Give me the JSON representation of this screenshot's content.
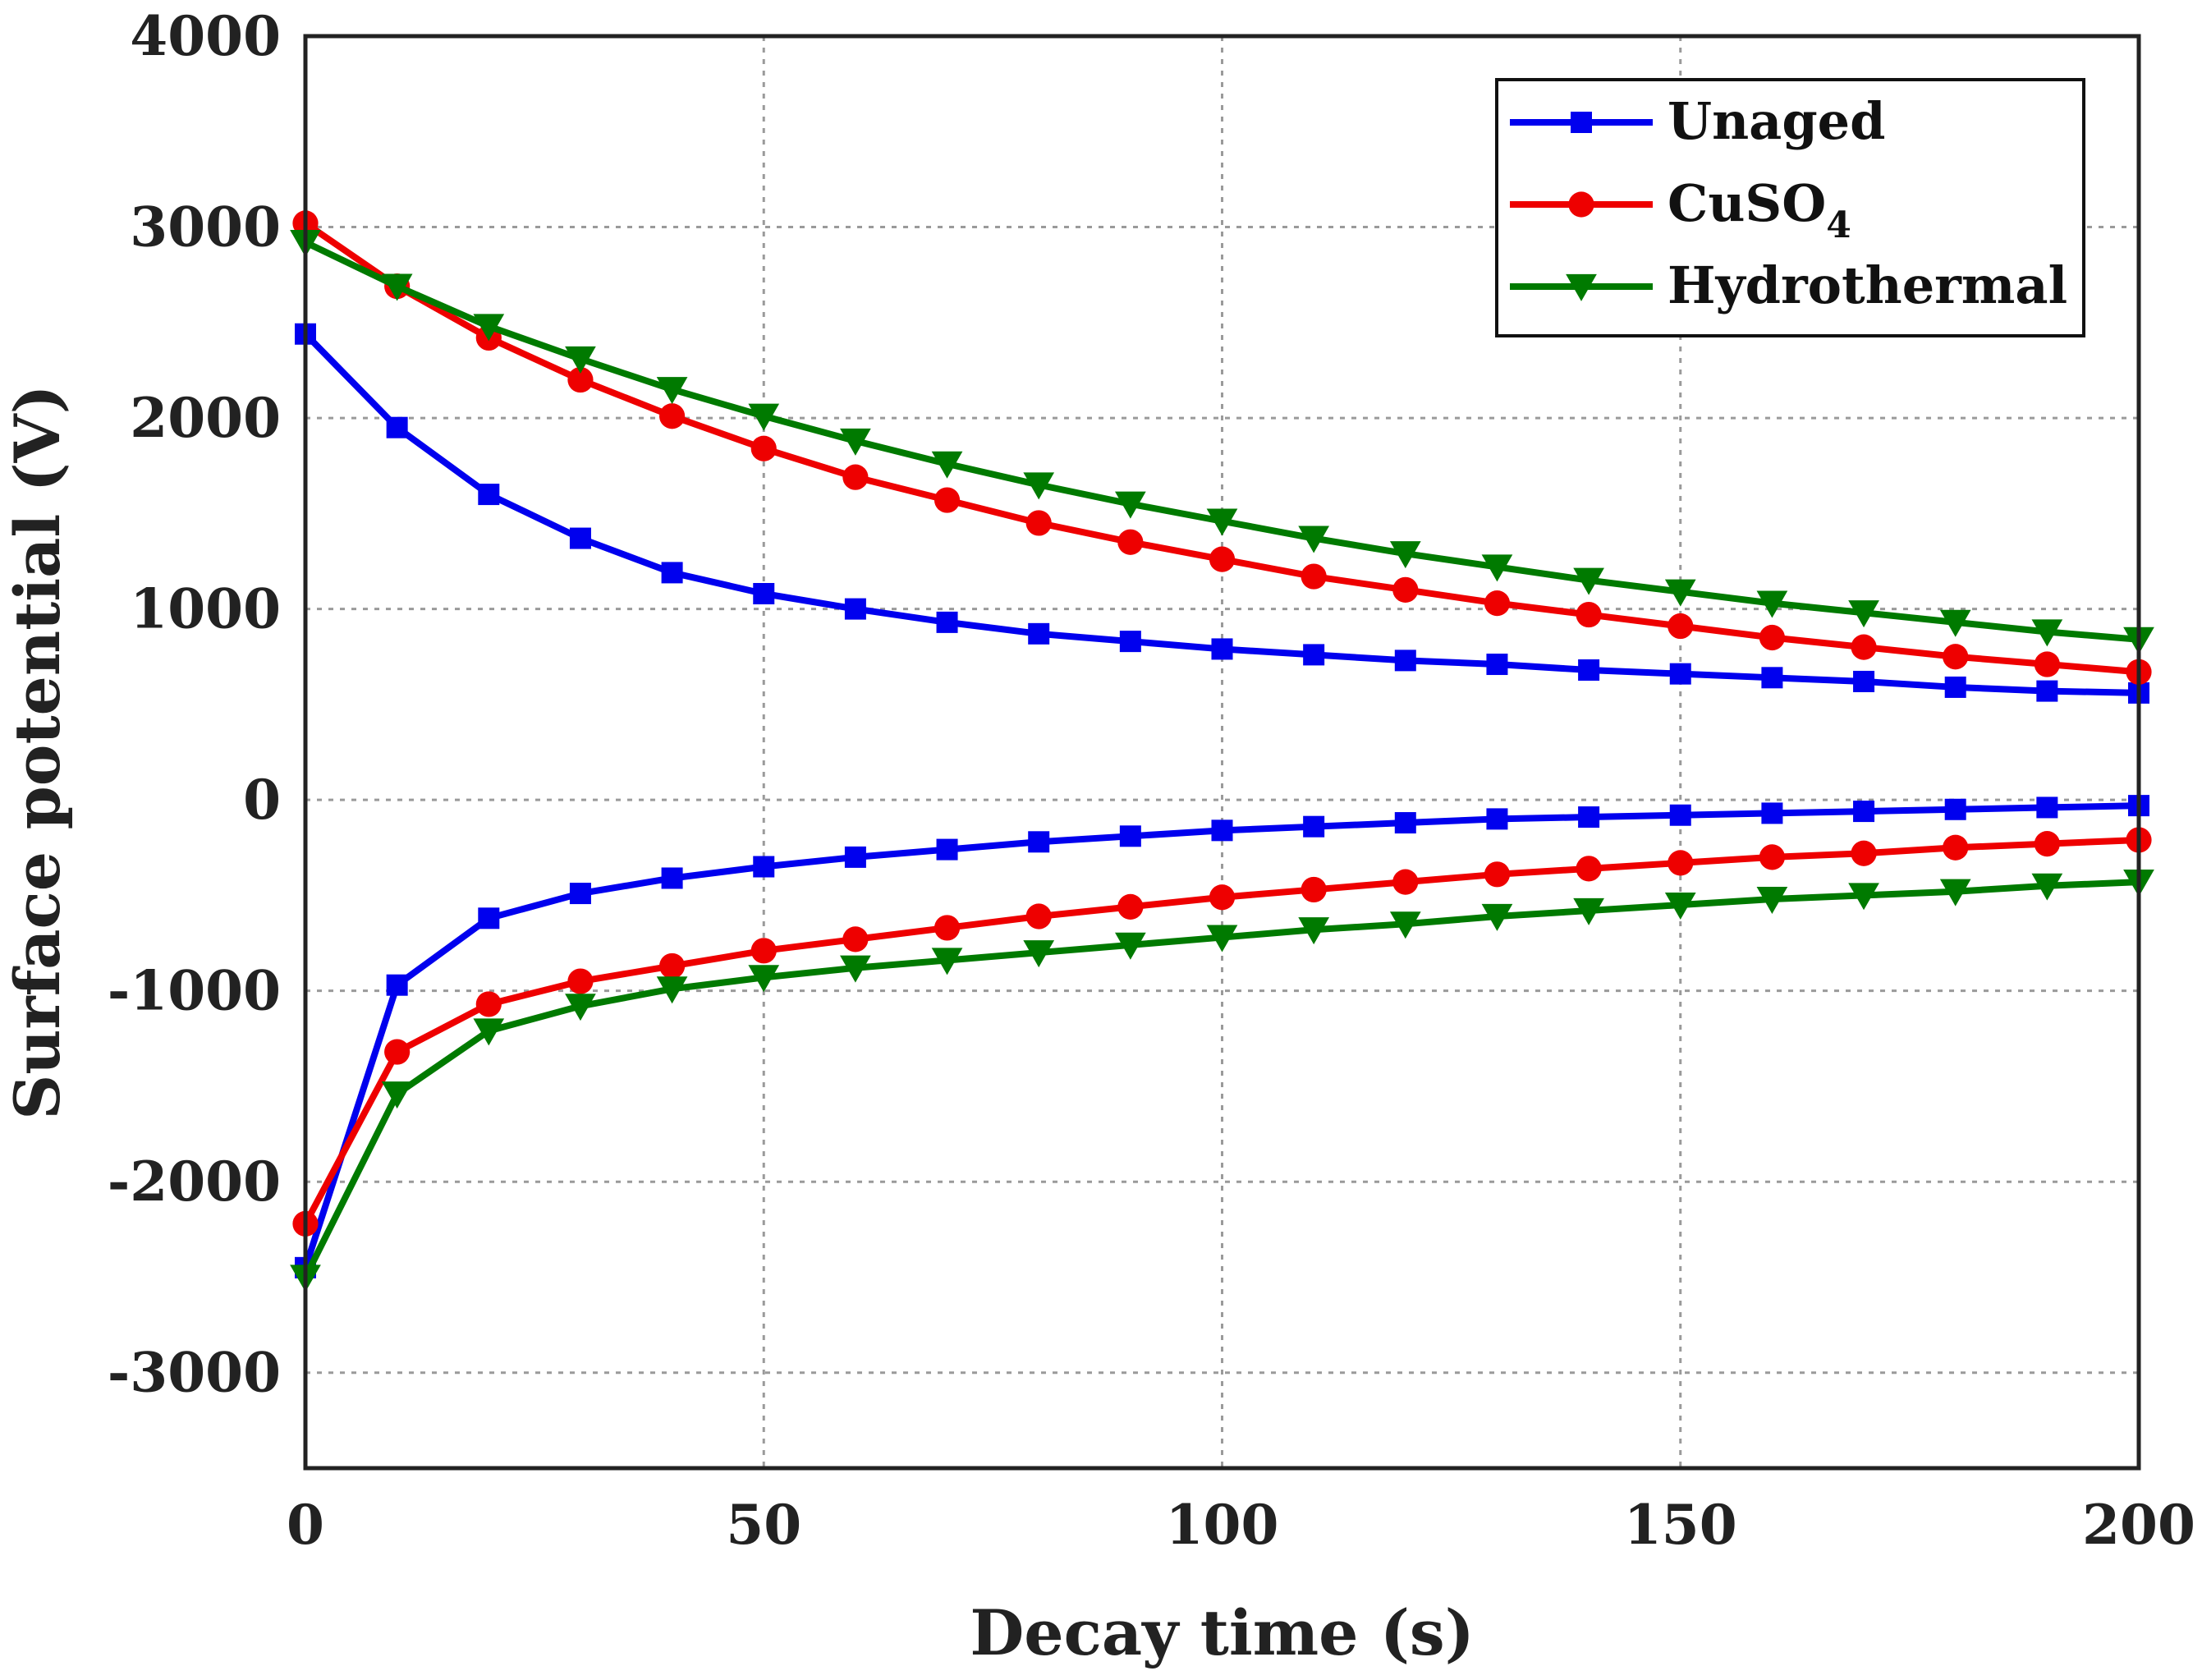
{
  "chart_data": {
    "type": "line",
    "title": "",
    "xlabel": "Decay time (s)",
    "ylabel": "Surface potential (V)",
    "xlim": [
      0,
      200
    ],
    "ylim": [
      -3500,
      4000
    ],
    "xticks": [
      0,
      50,
      100,
      150,
      200
    ],
    "yticks": [
      4000,
      3000,
      2000,
      1000,
      0,
      -1000,
      -2000,
      -3000
    ],
    "grid": true,
    "legend_position": "top-right",
    "legend": [
      {
        "text": "Unaged",
        "subscript": "",
        "color": "#0000ee",
        "marker": "square"
      },
      {
        "text": "CuSO",
        "subscript": "4",
        "color": "#ee0000",
        "marker": "circle"
      },
      {
        "text": "Hydrothermal",
        "subscript": "",
        "color": "#007a00",
        "marker": "triangle-down"
      }
    ],
    "x": [
      0,
      10,
      20,
      30,
      40,
      50,
      60,
      70,
      80,
      90,
      100,
      110,
      120,
      130,
      140,
      150,
      160,
      170,
      180,
      190,
      200
    ],
    "series": [
      {
        "name": "Unaged (positive)",
        "color": "#0000ee",
        "marker": "square",
        "values": [
          2440,
          1950,
          1600,
          1370,
          1190,
          1080,
          1000,
          930,
          870,
          830,
          790,
          760,
          730,
          710,
          680,
          660,
          640,
          620,
          590,
          570,
          560
        ]
      },
      {
        "name": "CuSO4 (positive)",
        "color": "#ee0000",
        "marker": "circle",
        "values": [
          3020,
          2690,
          2420,
          2200,
          2010,
          1840,
          1690,
          1570,
          1450,
          1350,
          1260,
          1170,
          1100,
          1030,
          970,
          910,
          850,
          800,
          750,
          710,
          670
        ]
      },
      {
        "name": "Hydrothermal (positive)",
        "color": "#007a00",
        "marker": "triangle-down",
        "values": [
          2920,
          2690,
          2480,
          2310,
          2150,
          2010,
          1880,
          1760,
          1650,
          1550,
          1460,
          1370,
          1290,
          1220,
          1150,
          1090,
          1030,
          980,
          930,
          880,
          840
        ]
      },
      {
        "name": "Unaged (negative)",
        "color": "#0000ee",
        "marker": "square",
        "values": [
          -2450,
          -970,
          -620,
          -490,
          -410,
          -350,
          -300,
          -260,
          -220,
          -190,
          -160,
          -140,
          -120,
          -100,
          -90,
          -80,
          -70,
          -60,
          -50,
          -40,
          -30
        ]
      },
      {
        "name": "CuSO4 (negative)",
        "color": "#ee0000",
        "marker": "circle",
        "values": [
          -2220,
          -1320,
          -1070,
          -950,
          -870,
          -790,
          -730,
          -670,
          -610,
          -560,
          -510,
          -470,
          -430,
          -390,
          -360,
          -330,
          -300,
          -280,
          -250,
          -230,
          -210
        ]
      },
      {
        "name": "Hydrothermal (negative)",
        "color": "#007a00",
        "marker": "triangle-down",
        "values": [
          -2500,
          -1540,
          -1210,
          -1080,
          -990,
          -930,
          -880,
          -840,
          -800,
          -760,
          -720,
          -680,
          -650,
          -610,
          -580,
          -550,
          -520,
          -500,
          -480,
          -450,
          -430
        ]
      }
    ]
  }
}
